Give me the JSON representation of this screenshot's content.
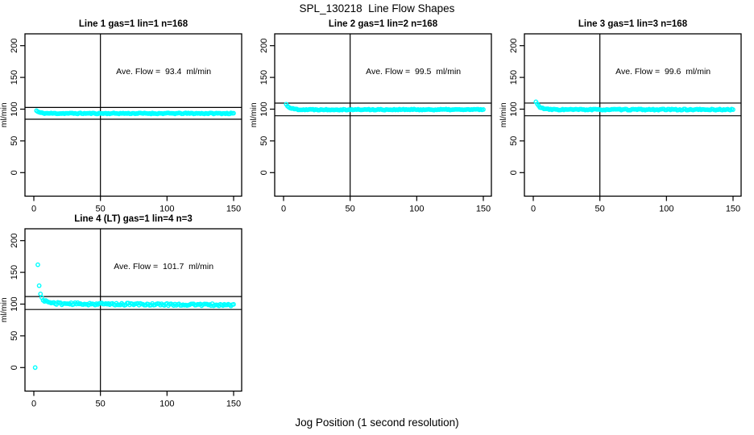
{
  "figure": {
    "title": "SPL_130218  Line Flow Shapes",
    "xlabel": "Jog Position (1 second resolution)",
    "background_color": "#ffffff",
    "point_color": "#00ffff",
    "line_color": "#000000"
  },
  "chart_data": [
    {
      "type": "scatter",
      "title": "Line 1 gas=1 lin=1 n=168",
      "annotation": "Ave. Flow =  93.4  ml/min",
      "ave_flow_ml_min": 93.4,
      "n_points": 168,
      "ylabel": "ml/min",
      "x_ticks": [
        0,
        50,
        100,
        150
      ],
      "y_ticks": [
        0,
        50,
        100,
        150,
        200
      ],
      "x_range_labeled": [
        0,
        150
      ],
      "y_range_labeled": [
        0,
        200
      ],
      "grid": {
        "row": 0,
        "col": 0
      },
      "vline_x": 50,
      "ref_lines": [
        84.1,
        102.7
      ],
      "series": {
        "x_start": 2,
        "x_end": 150,
        "step": 1,
        "start_y": 97.5,
        "settle_y": 93.3,
        "tau": 2.2,
        "drift": 0,
        "noise": 0.8,
        "seed": 11
      },
      "extra_points": []
    },
    {
      "type": "scatter",
      "title": "Line 2 gas=1 lin=2 n=168",
      "annotation": "Ave. Flow =  99.5  ml/min",
      "ave_flow_ml_min": 99.5,
      "n_points": 168,
      "ylabel": "ml/min",
      "x_ticks": [
        0,
        50,
        100,
        150
      ],
      "y_ticks": [
        0,
        50,
        100,
        150,
        200
      ],
      "x_range_labeled": [
        0,
        150
      ],
      "y_range_labeled": [
        0,
        200
      ],
      "grid": {
        "row": 0,
        "col": 1
      },
      "vline_x": 50,
      "ref_lines": [
        89.6,
        109.5
      ],
      "series": {
        "x_start": 2,
        "x_end": 150,
        "step": 1,
        "start_y": 107.5,
        "settle_y": 99.3,
        "tau": 2.8,
        "drift": 0,
        "noise": 0.8,
        "seed": 22
      },
      "extra_points": []
    },
    {
      "type": "scatter",
      "title": "Line 3 gas=1 lin=3 n=168",
      "annotation": "Ave. Flow =  99.6  ml/min",
      "ave_flow_ml_min": 99.6,
      "n_points": 168,
      "ylabel": "ml/min",
      "x_ticks": [
        0,
        50,
        100,
        150
      ],
      "y_ticks": [
        0,
        50,
        100,
        150,
        200
      ],
      "x_range_labeled": [
        0,
        150
      ],
      "y_range_labeled": [
        0,
        200
      ],
      "grid": {
        "row": 0,
        "col": 2
      },
      "vline_x": 50,
      "ref_lines": [
        89.6,
        109.6
      ],
      "series": {
        "x_start": 2,
        "x_end": 150,
        "step": 1,
        "start_y": 111.5,
        "settle_y": 99.3,
        "tau": 2.8,
        "drift": 0,
        "noise": 0.9,
        "seed": 33
      },
      "extra_points": []
    },
    {
      "type": "scatter",
      "title": "Line 4 (LT) gas=1 lin=4 n=3",
      "annotation": "Ave. Flow =  101.7  ml/min",
      "ave_flow_ml_min": 101.7,
      "n_points": 3,
      "ylabel": "ml/min",
      "x_ticks": [
        0,
        50,
        100,
        150
      ],
      "y_ticks": [
        0,
        50,
        100,
        150,
        200
      ],
      "x_range_labeled": [
        0,
        150
      ],
      "y_range_labeled": [
        0,
        200
      ],
      "grid": {
        "row": 1,
        "col": 0
      },
      "vline_x": 50,
      "ref_lines": [
        91.5,
        111.9
      ],
      "series": {
        "x_start": 6,
        "x_end": 150,
        "step": 1,
        "start_y": 109,
        "settle_y": 100.8,
        "tau": 4,
        "drift": -0.015,
        "noise": 1.8,
        "seed": 44
      },
      "extra_points": [
        [
          1,
          0
        ],
        [
          3,
          162
        ],
        [
          4,
          129
        ],
        [
          5,
          116
        ]
      ]
    }
  ]
}
